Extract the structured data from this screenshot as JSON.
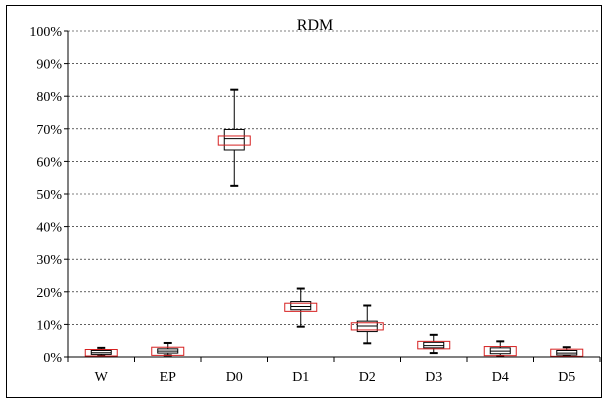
{
  "chart_data": {
    "type": "boxplot",
    "title": "RDM",
    "xlabel": "",
    "ylabel": "",
    "ylim": [
      0,
      100
    ],
    "y_ticks": [
      "0%",
      "10%",
      "20%",
      "30%",
      "40%",
      "50%",
      "60%",
      "70%",
      "80%",
      "90%",
      "100%"
    ],
    "grid": true,
    "categories": [
      "W",
      "EP",
      "D0",
      "D1",
      "D2",
      "D3",
      "D4",
      "D5"
    ],
    "boxes": [
      {
        "category": "W",
        "min": 0.3,
        "q1": 0.8,
        "median": 1.3,
        "q3": 2.0,
        "max": 2.8,
        "mean_low": 0.3,
        "mean_high": 2.3
      },
      {
        "category": "EP",
        "min": 0.5,
        "q1": 1.2,
        "median": 1.8,
        "q3": 2.5,
        "max": 4.3,
        "mean_low": 0.5,
        "mean_high": 3.0
      },
      {
        "category": "D0",
        "min": 52.5,
        "q1": 63.5,
        "median": 67.0,
        "q3": 69.8,
        "max": 82.0,
        "mean_low": 65.0,
        "mean_high": 67.8
      },
      {
        "category": "D1",
        "min": 9.3,
        "q1": 14.5,
        "median": 15.5,
        "q3": 17.0,
        "max": 21.0,
        "mean_low": 14.0,
        "mean_high": 16.5
      },
      {
        "category": "D2",
        "min": 4.2,
        "q1": 7.8,
        "median": 9.5,
        "q3": 11.0,
        "max": 15.8,
        "mean_low": 8.3,
        "mean_high": 10.5
      },
      {
        "category": "D3",
        "min": 1.2,
        "q1": 2.8,
        "median": 3.5,
        "q3": 4.5,
        "max": 6.8,
        "mean_low": 2.5,
        "mean_high": 4.8
      },
      {
        "category": "D4",
        "min": 0.3,
        "q1": 1.0,
        "median": 1.8,
        "q3": 2.8,
        "max": 4.8,
        "mean_low": 0.4,
        "mean_high": 3.2
      },
      {
        "category": "D5",
        "min": 0.2,
        "q1": 0.6,
        "median": 1.2,
        "q3": 2.0,
        "max": 3.0,
        "mean_low": 0.2,
        "mean_high": 2.4
      }
    ]
  },
  "colors": {
    "box_stroke": "#000000",
    "range_stroke": "#d62020",
    "grid": "#000000"
  }
}
